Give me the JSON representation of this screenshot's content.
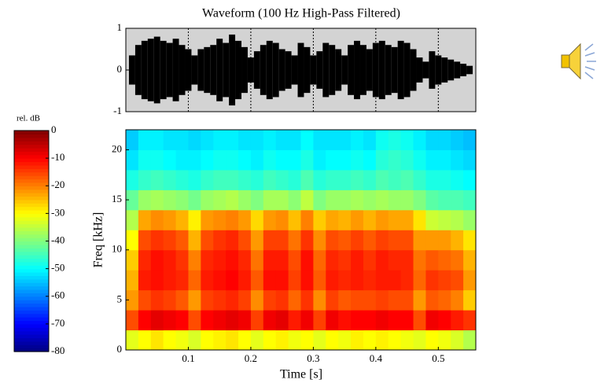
{
  "chart_data": [
    {
      "type": "waveform",
      "title": "Waveform (100 Hz High-Pass Filtered)",
      "x": [
        0.01,
        0.02,
        0.03,
        0.04,
        0.05,
        0.06,
        0.07,
        0.08,
        0.09,
        0.1,
        0.11,
        0.12,
        0.13,
        0.14,
        0.15,
        0.16,
        0.17,
        0.18,
        0.19,
        0.2,
        0.21,
        0.22,
        0.23,
        0.24,
        0.25,
        0.26,
        0.27,
        0.28,
        0.29,
        0.3,
        0.31,
        0.32,
        0.33,
        0.34,
        0.35,
        0.36,
        0.37,
        0.38,
        0.39,
        0.4,
        0.41,
        0.42,
        0.43,
        0.44,
        0.45,
        0.46,
        0.47,
        0.48,
        0.49,
        0.5,
        0.51,
        0.52,
        0.53,
        0.54,
        0.55
      ],
      "values": [
        0.35,
        0.6,
        0.7,
        0.75,
        0.8,
        0.7,
        0.65,
        0.75,
        0.6,
        0.5,
        0.35,
        0.5,
        0.55,
        0.6,
        0.75,
        0.65,
        0.85,
        0.7,
        0.55,
        0.3,
        0.45,
        0.6,
        0.7,
        0.65,
        0.5,
        0.45,
        0.35,
        0.65,
        0.55,
        0.35,
        0.45,
        0.65,
        0.6,
        0.5,
        0.35,
        0.6,
        0.7,
        0.6,
        0.5,
        0.65,
        0.7,
        0.6,
        0.55,
        0.7,
        0.65,
        0.5,
        0.3,
        0.2,
        0.45,
        0.35,
        0.3,
        0.25,
        0.2,
        0.15,
        0.1
      ],
      "color": "#000000",
      "background": "#d3d3d3",
      "xlim": [
        0,
        0.56
      ],
      "xticks": [
        0.1,
        0.2,
        0.3,
        0.4,
        0.5
      ],
      "ylim": [
        -1,
        1
      ],
      "yticks": [
        -1,
        0,
        1
      ],
      "grid": true
    },
    {
      "type": "heatmap",
      "xlabel": "Time [s]",
      "ylabel": "Freq [kHz]",
      "x": [
        0.01,
        0.03,
        0.05,
        0.07,
        0.09,
        0.11,
        0.13,
        0.15,
        0.17,
        0.19,
        0.21,
        0.23,
        0.25,
        0.27,
        0.29,
        0.31,
        0.33,
        0.35,
        0.37,
        0.39,
        0.41,
        0.43,
        0.45,
        0.47,
        0.49,
        0.51,
        0.53,
        0.55
      ],
      "y": [
        1,
        3,
        5,
        7,
        9,
        11,
        13,
        15,
        17,
        19,
        21
      ],
      "z": [
        [
          -32,
          -30,
          -28,
          -30,
          -31,
          -33,
          -30,
          -29,
          -28,
          -30,
          -32,
          -30,
          -29,
          -31,
          -30,
          -32,
          -30,
          -31,
          -29,
          -30,
          -29,
          -30,
          -31,
          -32,
          -30,
          -31,
          -33,
          -36
        ],
        [
          -16,
          -10,
          -8,
          -9,
          -10,
          -16,
          -10,
          -9,
          -8,
          -9,
          -15,
          -9,
          -8,
          -12,
          -9,
          -15,
          -9,
          -11,
          -10,
          -10,
          -9,
          -10,
          -10,
          -16,
          -9,
          -10,
          -12,
          -14
        ],
        [
          -22,
          -16,
          -14,
          -15,
          -17,
          -22,
          -15,
          -14,
          -13,
          -15,
          -21,
          -15,
          -14,
          -18,
          -14,
          -21,
          -15,
          -17,
          -16,
          -16,
          -15,
          -16,
          -16,
          -22,
          -17,
          -18,
          -20,
          -26
        ],
        [
          -24,
          -12,
          -11,
          -12,
          -13,
          -18,
          -12,
          -11,
          -10,
          -12,
          -17,
          -11,
          -11,
          -15,
          -11,
          -17,
          -12,
          -13,
          -12,
          -13,
          -12,
          -12,
          -13,
          -18,
          -14,
          -15,
          -16,
          -22
        ],
        [
          -26,
          -13,
          -11,
          -12,
          -14,
          -20,
          -13,
          -12,
          -11,
          -13,
          -19,
          -12,
          -12,
          -16,
          -11,
          -18,
          -13,
          -14,
          -12,
          -14,
          -12,
          -13,
          -13,
          -19,
          -17,
          -18,
          -19,
          -24
        ],
        [
          -30,
          -16,
          -14,
          -15,
          -17,
          -24,
          -16,
          -14,
          -13,
          -16,
          -22,
          -15,
          -15,
          -19,
          -14,
          -21,
          -16,
          -17,
          -15,
          -17,
          -15,
          -16,
          -16,
          -22,
          -22,
          -22,
          -24,
          -28
        ],
        [
          -36,
          -23,
          -21,
          -22,
          -24,
          -29,
          -22,
          -21,
          -20,
          -22,
          -27,
          -22,
          -21,
          -25,
          -20,
          -26,
          -23,
          -24,
          -22,
          -24,
          -22,
          -23,
          -23,
          -28,
          -34,
          -35,
          -36,
          -38
        ],
        [
          -42,
          -38,
          -37,
          -38,
          -39,
          -41,
          -38,
          -37,
          -36,
          -38,
          -40,
          -37,
          -37,
          -39,
          -35,
          -40,
          -38,
          -38,
          -37,
          -38,
          -37,
          -38,
          -38,
          -40,
          -43,
          -44,
          -44,
          -45
        ],
        [
          -48,
          -46,
          -45,
          -46,
          -47,
          -48,
          -46,
          -45,
          -45,
          -46,
          -47,
          -45,
          -46,
          -47,
          -44,
          -47,
          -46,
          -46,
          -45,
          -46,
          -44,
          -45,
          -44,
          -46,
          -48,
          -48,
          -49,
          -50
        ],
        [
          -52,
          -49,
          -49,
          -50,
          -51,
          -51,
          -50,
          -49,
          -49,
          -50,
          -51,
          -49,
          -50,
          -50,
          -48,
          -51,
          -50,
          -50,
          -49,
          -50,
          -47,
          -46,
          -47,
          -49,
          -51,
          -51,
          -52,
          -53
        ],
        [
          -54,
          -51,
          -51,
          -52,
          -52,
          -53,
          -52,
          -51,
          -51,
          -52,
          -52,
          -51,
          -52,
          -52,
          -50,
          -52,
          -52,
          -52,
          -51,
          -52,
          -49,
          -48,
          -49,
          -51,
          -53,
          -53,
          -54,
          -55
        ]
      ],
      "colormap": "jet",
      "clim": [
        -80,
        0
      ],
      "colorbar": {
        "label": "rel. dB",
        "ticks": [
          0,
          -10,
          -20,
          -30,
          -40,
          -50,
          -60,
          -70,
          -80
        ]
      },
      "xlim": [
        0,
        0.56
      ],
      "xticks": [
        0.1,
        0.2,
        0.3,
        0.4,
        0.5
      ],
      "ylim": [
        0,
        22
      ],
      "yticks": [
        0,
        5,
        10,
        15,
        20
      ]
    }
  ]
}
